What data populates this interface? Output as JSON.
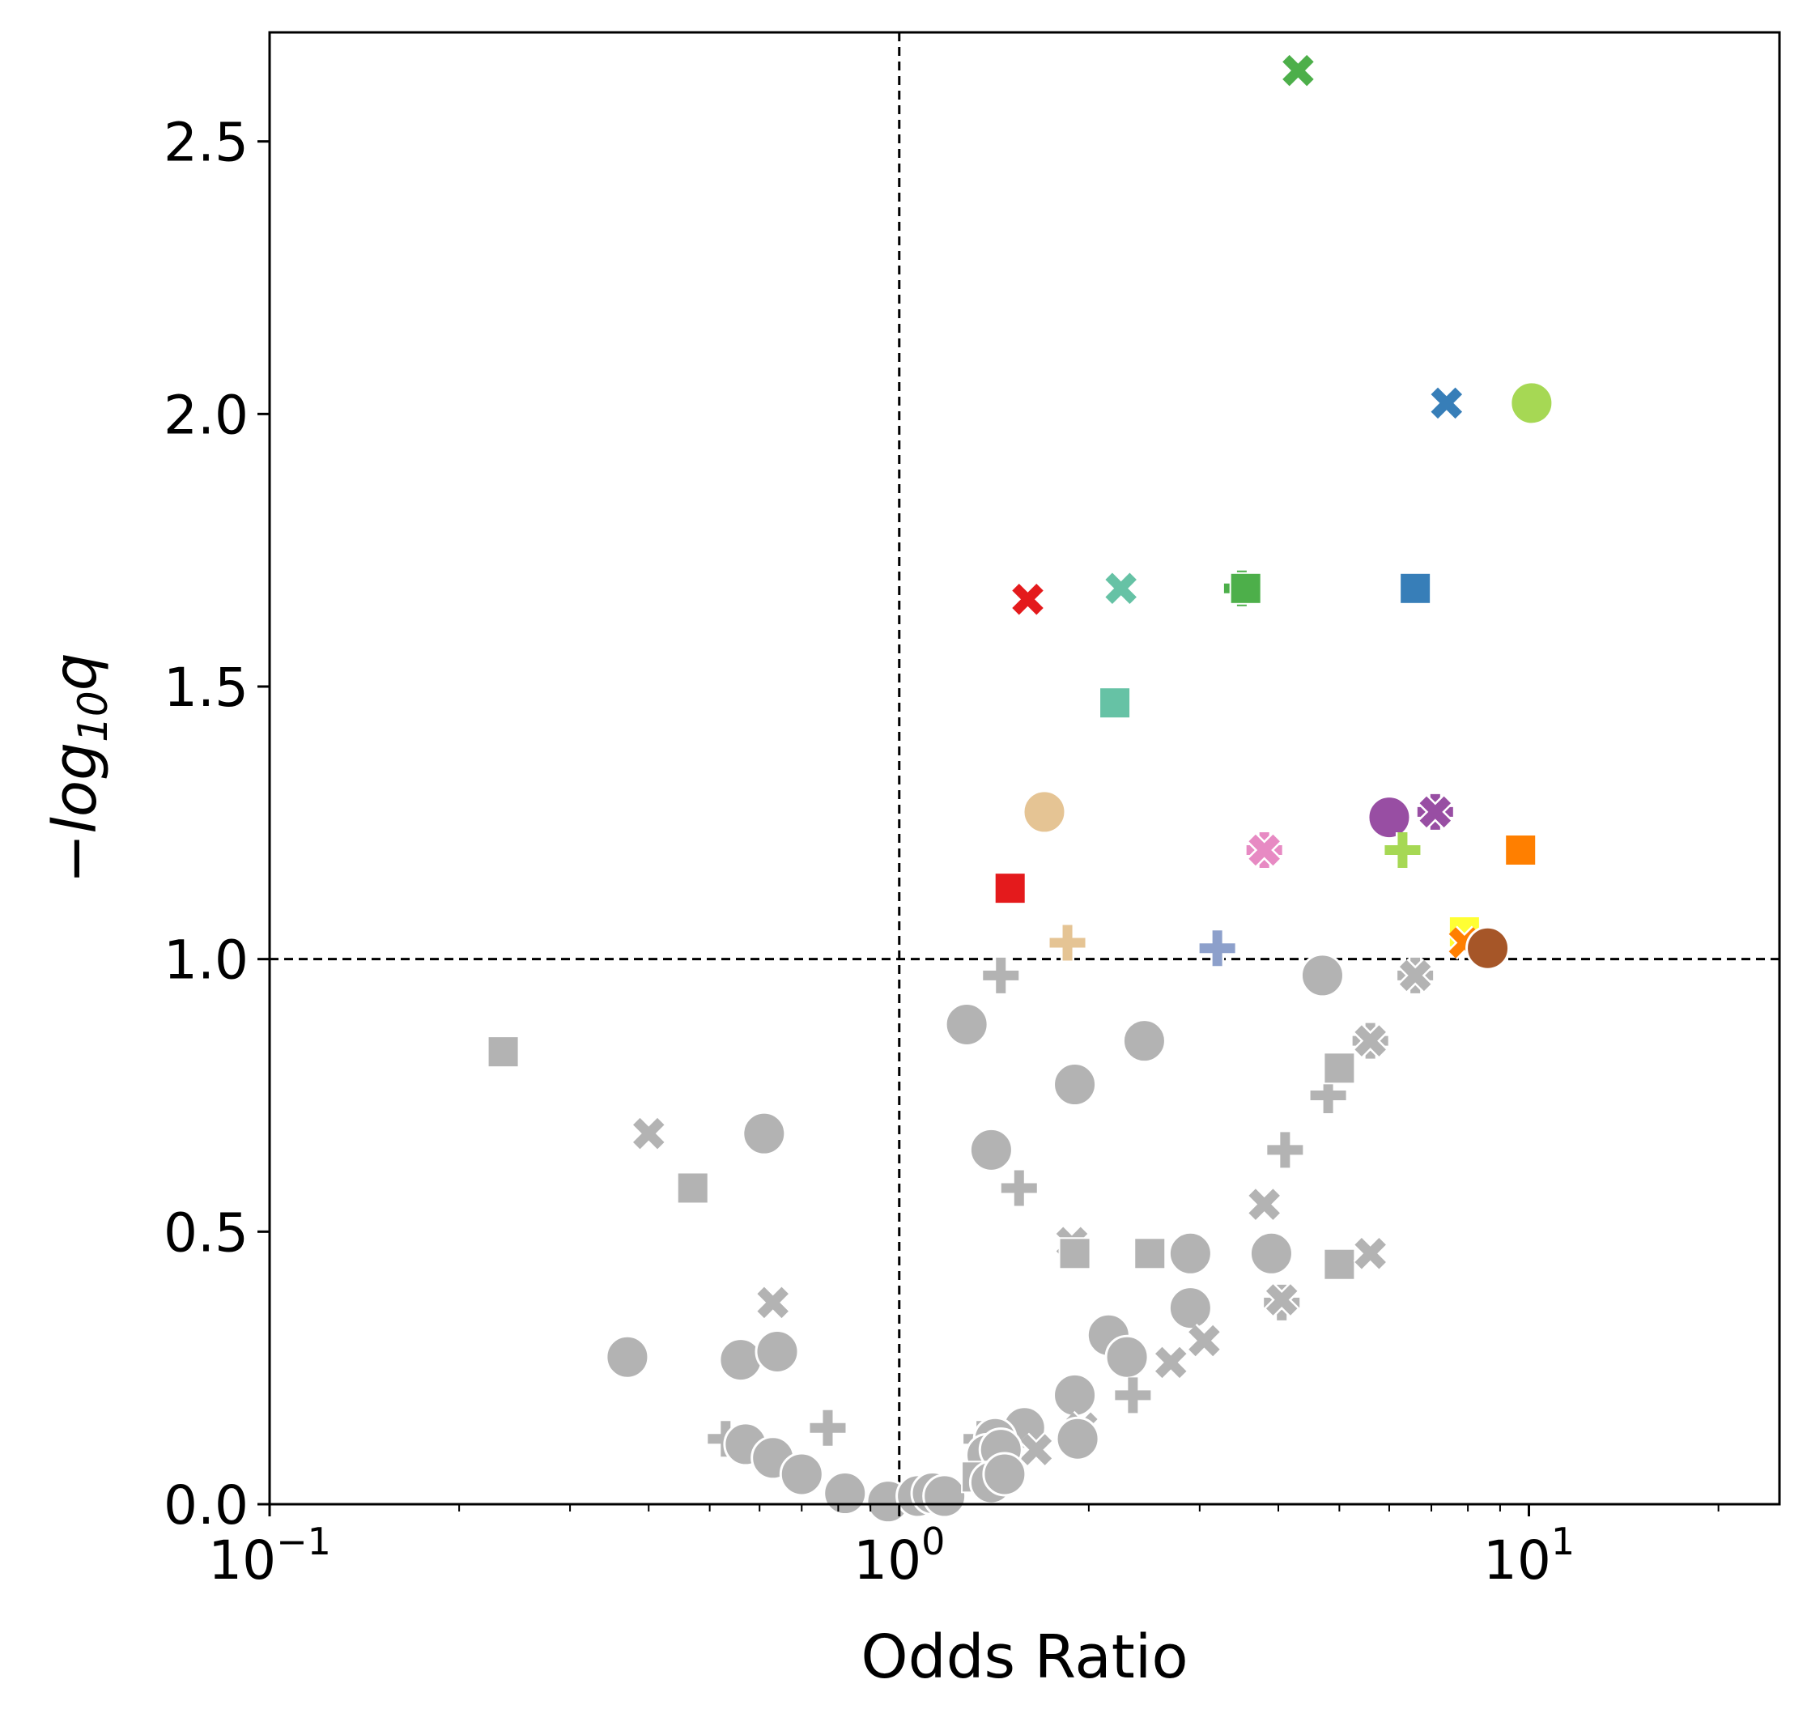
{
  "chart_data": {
    "type": "scatter",
    "xlabel": "Odds Ratio",
    "ylabel_prefix": "−",
    "ylabel_main": "log",
    "ylabel_sub": "10",
    "ylabel_var": "q",
    "xscale": "log",
    "xlim": [
      0.1,
      25
    ],
    "ylim": [
      0,
      2.7
    ],
    "x_ticks": [
      {
        "value": 0.1,
        "base": "10",
        "exp": "−1"
      },
      {
        "value": 1,
        "base": "10",
        "exp": "0"
      },
      {
        "value": 10,
        "base": "10",
        "exp": "1"
      }
    ],
    "y_ticks": [
      {
        "value": 0.0,
        "label": "0.0"
      },
      {
        "value": 0.5,
        "label": "0.5"
      },
      {
        "value": 1.0,
        "label": "1.0"
      },
      {
        "value": 1.5,
        "label": "1.5"
      },
      {
        "value": 2.0,
        "label": "2.0"
      },
      {
        "value": 2.5,
        "label": "2.5"
      }
    ],
    "reference_lines": {
      "x": 1,
      "y": 1.0
    },
    "grid": false,
    "points": [
      {
        "x": 4.3,
        "y": 2.63,
        "marker": "x",
        "color": "#4daf4a"
      },
      {
        "x": 7.4,
        "y": 2.02,
        "marker": "x",
        "color": "#377eb8"
      },
      {
        "x": 10.1,
        "y": 2.02,
        "marker": "o",
        "color": "#a6d854"
      },
      {
        "x": 1.6,
        "y": 1.66,
        "marker": "x",
        "color": "#e41a1c"
      },
      {
        "x": 2.25,
        "y": 1.68,
        "marker": "x",
        "color": "#66c2a5"
      },
      {
        "x": 3.5,
        "y": 1.68,
        "marker": "+",
        "color": "#4daf4a"
      },
      {
        "x": 3.55,
        "y": 1.68,
        "marker": "s",
        "color": "#4daf4a"
      },
      {
        "x": 6.6,
        "y": 1.68,
        "marker": "s",
        "color": "#377eb8"
      },
      {
        "x": 2.2,
        "y": 1.47,
        "marker": "s",
        "color": "#66c2a5"
      },
      {
        "x": 1.7,
        "y": 1.27,
        "marker": "o",
        "color": "#e5c494"
      },
      {
        "x": 6.0,
        "y": 1.26,
        "marker": "o",
        "color": "#984ea3"
      },
      {
        "x": 7.1,
        "y": 1.27,
        "marker": "+",
        "color": "#984ea3"
      },
      {
        "x": 7.1,
        "y": 1.27,
        "marker": "x",
        "color": "#984ea3"
      },
      {
        "x": 3.8,
        "y": 1.2,
        "marker": "+",
        "color": "#e78ac3"
      },
      {
        "x": 3.8,
        "y": 1.2,
        "marker": "x",
        "color": "#e78ac3"
      },
      {
        "x": 6.3,
        "y": 1.2,
        "marker": "+",
        "color": "#a6d854"
      },
      {
        "x": 9.7,
        "y": 1.2,
        "marker": "s",
        "color": "#ff7f00"
      },
      {
        "x": 1.5,
        "y": 1.13,
        "marker": "s",
        "color": "#e41a1c"
      },
      {
        "x": 1.85,
        "y": 1.03,
        "marker": "+",
        "color": "#e5c494"
      },
      {
        "x": 3.2,
        "y": 1.02,
        "marker": "+",
        "color": "#8da0cb"
      },
      {
        "x": 7.9,
        "y": 1.05,
        "marker": "s",
        "color": "#ffff33"
      },
      {
        "x": 7.9,
        "y": 1.03,
        "marker": "x",
        "color": "#ff7f00"
      },
      {
        "x": 8.6,
        "y": 1.02,
        "marker": "o",
        "color": "#a65628"
      },
      {
        "x": 0.235,
        "y": 0.83,
        "marker": "s",
        "color": "#b3b3b3"
      },
      {
        "x": 0.4,
        "y": 0.68,
        "marker": "x",
        "color": "#b3b3b3"
      },
      {
        "x": 0.61,
        "y": 0.68,
        "marker": "o",
        "color": "#b3b3b3"
      },
      {
        "x": 0.47,
        "y": 0.58,
        "marker": "s",
        "color": "#b3b3b3"
      },
      {
        "x": 0.63,
        "y": 0.37,
        "marker": "x",
        "color": "#b3b3b3"
      },
      {
        "x": 0.37,
        "y": 0.27,
        "marker": "o",
        "color": "#b3b3b3"
      },
      {
        "x": 0.56,
        "y": 0.265,
        "marker": "o",
        "color": "#b3b3b3"
      },
      {
        "x": 0.64,
        "y": 0.28,
        "marker": "o",
        "color": "#b3b3b3"
      },
      {
        "x": 0.53,
        "y": 0.12,
        "marker": "+",
        "color": "#b3b3b3"
      },
      {
        "x": 0.57,
        "y": 0.11,
        "marker": "o",
        "color": "#b3b3b3"
      },
      {
        "x": 0.63,
        "y": 0.085,
        "marker": "o",
        "color": "#b3b3b3"
      },
      {
        "x": 0.7,
        "y": 0.055,
        "marker": "o",
        "color": "#b3b3b3"
      },
      {
        "x": 0.77,
        "y": 0.14,
        "marker": "+",
        "color": "#b3b3b3"
      },
      {
        "x": 0.82,
        "y": 0.02,
        "marker": "o",
        "color": "#b3b3b3"
      },
      {
        "x": 0.96,
        "y": 0.005,
        "marker": "o",
        "color": "#b3b3b3"
      },
      {
        "x": 1.07,
        "y": 0.015,
        "marker": "o",
        "color": "#b3b3b3"
      },
      {
        "x": 1.13,
        "y": 0.02,
        "marker": "o",
        "color": "#b3b3b3"
      },
      {
        "x": 1.18,
        "y": 0.015,
        "marker": "o",
        "color": "#b3b3b3"
      },
      {
        "x": 1.28,
        "y": 0.88,
        "marker": "o",
        "color": "#b3b3b3"
      },
      {
        "x": 1.45,
        "y": 0.97,
        "marker": "+",
        "color": "#b3b3b3"
      },
      {
        "x": 1.4,
        "y": 0.65,
        "marker": "o",
        "color": "#b3b3b3"
      },
      {
        "x": 1.55,
        "y": 0.58,
        "marker": "+",
        "color": "#b3b3b3"
      },
      {
        "x": 1.9,
        "y": 0.77,
        "marker": "o",
        "color": "#b3b3b3"
      },
      {
        "x": 2.45,
        "y": 0.85,
        "marker": "o",
        "color": "#b3b3b3"
      },
      {
        "x": 1.88,
        "y": 0.48,
        "marker": "x",
        "color": "#b3b3b3"
      },
      {
        "x": 1.9,
        "y": 0.46,
        "marker": "s",
        "color": "#b3b3b3"
      },
      {
        "x": 2.5,
        "y": 0.46,
        "marker": "s",
        "color": "#b3b3b3"
      },
      {
        "x": 2.9,
        "y": 0.46,
        "marker": "o",
        "color": "#b3b3b3"
      },
      {
        "x": 2.9,
        "y": 0.36,
        "marker": "o",
        "color": "#b3b3b3"
      },
      {
        "x": 2.15,
        "y": 0.31,
        "marker": "o",
        "color": "#b3b3b3"
      },
      {
        "x": 2.3,
        "y": 0.27,
        "marker": "o",
        "color": "#b3b3b3"
      },
      {
        "x": 2.7,
        "y": 0.26,
        "marker": "x",
        "color": "#b3b3b3"
      },
      {
        "x": 3.05,
        "y": 0.3,
        "marker": "x",
        "color": "#b3b3b3"
      },
      {
        "x": 2.35,
        "y": 0.2,
        "marker": "+",
        "color": "#b3b3b3"
      },
      {
        "x": 1.9,
        "y": 0.2,
        "marker": "o",
        "color": "#b3b3b3"
      },
      {
        "x": 1.95,
        "y": 0.14,
        "marker": "x",
        "color": "#b3b3b3"
      },
      {
        "x": 1.92,
        "y": 0.12,
        "marker": "o",
        "color": "#b3b3b3"
      },
      {
        "x": 1.58,
        "y": 0.14,
        "marker": "o",
        "color": "#b3b3b3"
      },
      {
        "x": 1.65,
        "y": 0.1,
        "marker": "x",
        "color": "#b3b3b3"
      },
      {
        "x": 1.35,
        "y": 0.12,
        "marker": "+",
        "color": "#b3b3b3"
      },
      {
        "x": 1.42,
        "y": 0.12,
        "marker": "o",
        "color": "#b3b3b3"
      },
      {
        "x": 1.38,
        "y": 0.09,
        "marker": "o",
        "color": "#b3b3b3"
      },
      {
        "x": 1.45,
        "y": 0.1,
        "marker": "o",
        "color": "#b3b3b3"
      },
      {
        "x": 1.33,
        "y": 0.05,
        "marker": "s",
        "color": "#b3b3b3"
      },
      {
        "x": 1.4,
        "y": 0.04,
        "marker": "o",
        "color": "#b3b3b3"
      },
      {
        "x": 1.47,
        "y": 0.055,
        "marker": "o",
        "color": "#b3b3b3"
      },
      {
        "x": 3.8,
        "y": 0.55,
        "marker": "x",
        "color": "#b3b3b3"
      },
      {
        "x": 3.9,
        "y": 0.46,
        "marker": "o",
        "color": "#b3b3b3"
      },
      {
        "x": 4.05,
        "y": 0.37,
        "marker": "+",
        "color": "#b3b3b3"
      },
      {
        "x": 4.05,
        "y": 0.375,
        "marker": "x",
        "color": "#b3b3b3"
      },
      {
        "x": 4.1,
        "y": 0.65,
        "marker": "+",
        "color": "#b3b3b3"
      },
      {
        "x": 4.7,
        "y": 0.97,
        "marker": "o",
        "color": "#b3b3b3"
      },
      {
        "x": 4.8,
        "y": 0.75,
        "marker": "+",
        "color": "#b3b3b3"
      },
      {
        "x": 5.0,
        "y": 0.8,
        "marker": "s",
        "color": "#b3b3b3"
      },
      {
        "x": 5.0,
        "y": 0.44,
        "marker": "s",
        "color": "#b3b3b3"
      },
      {
        "x": 5.6,
        "y": 0.85,
        "marker": "+",
        "color": "#b3b3b3"
      },
      {
        "x": 5.6,
        "y": 0.85,
        "marker": "x",
        "color": "#b3b3b3"
      },
      {
        "x": 5.6,
        "y": 0.46,
        "marker": "x",
        "color": "#b3b3b3"
      },
      {
        "x": 6.6,
        "y": 0.97,
        "marker": "+",
        "color": "#b3b3b3"
      },
      {
        "x": 6.6,
        "y": 0.97,
        "marker": "x",
        "color": "#b3b3b3"
      }
    ]
  }
}
